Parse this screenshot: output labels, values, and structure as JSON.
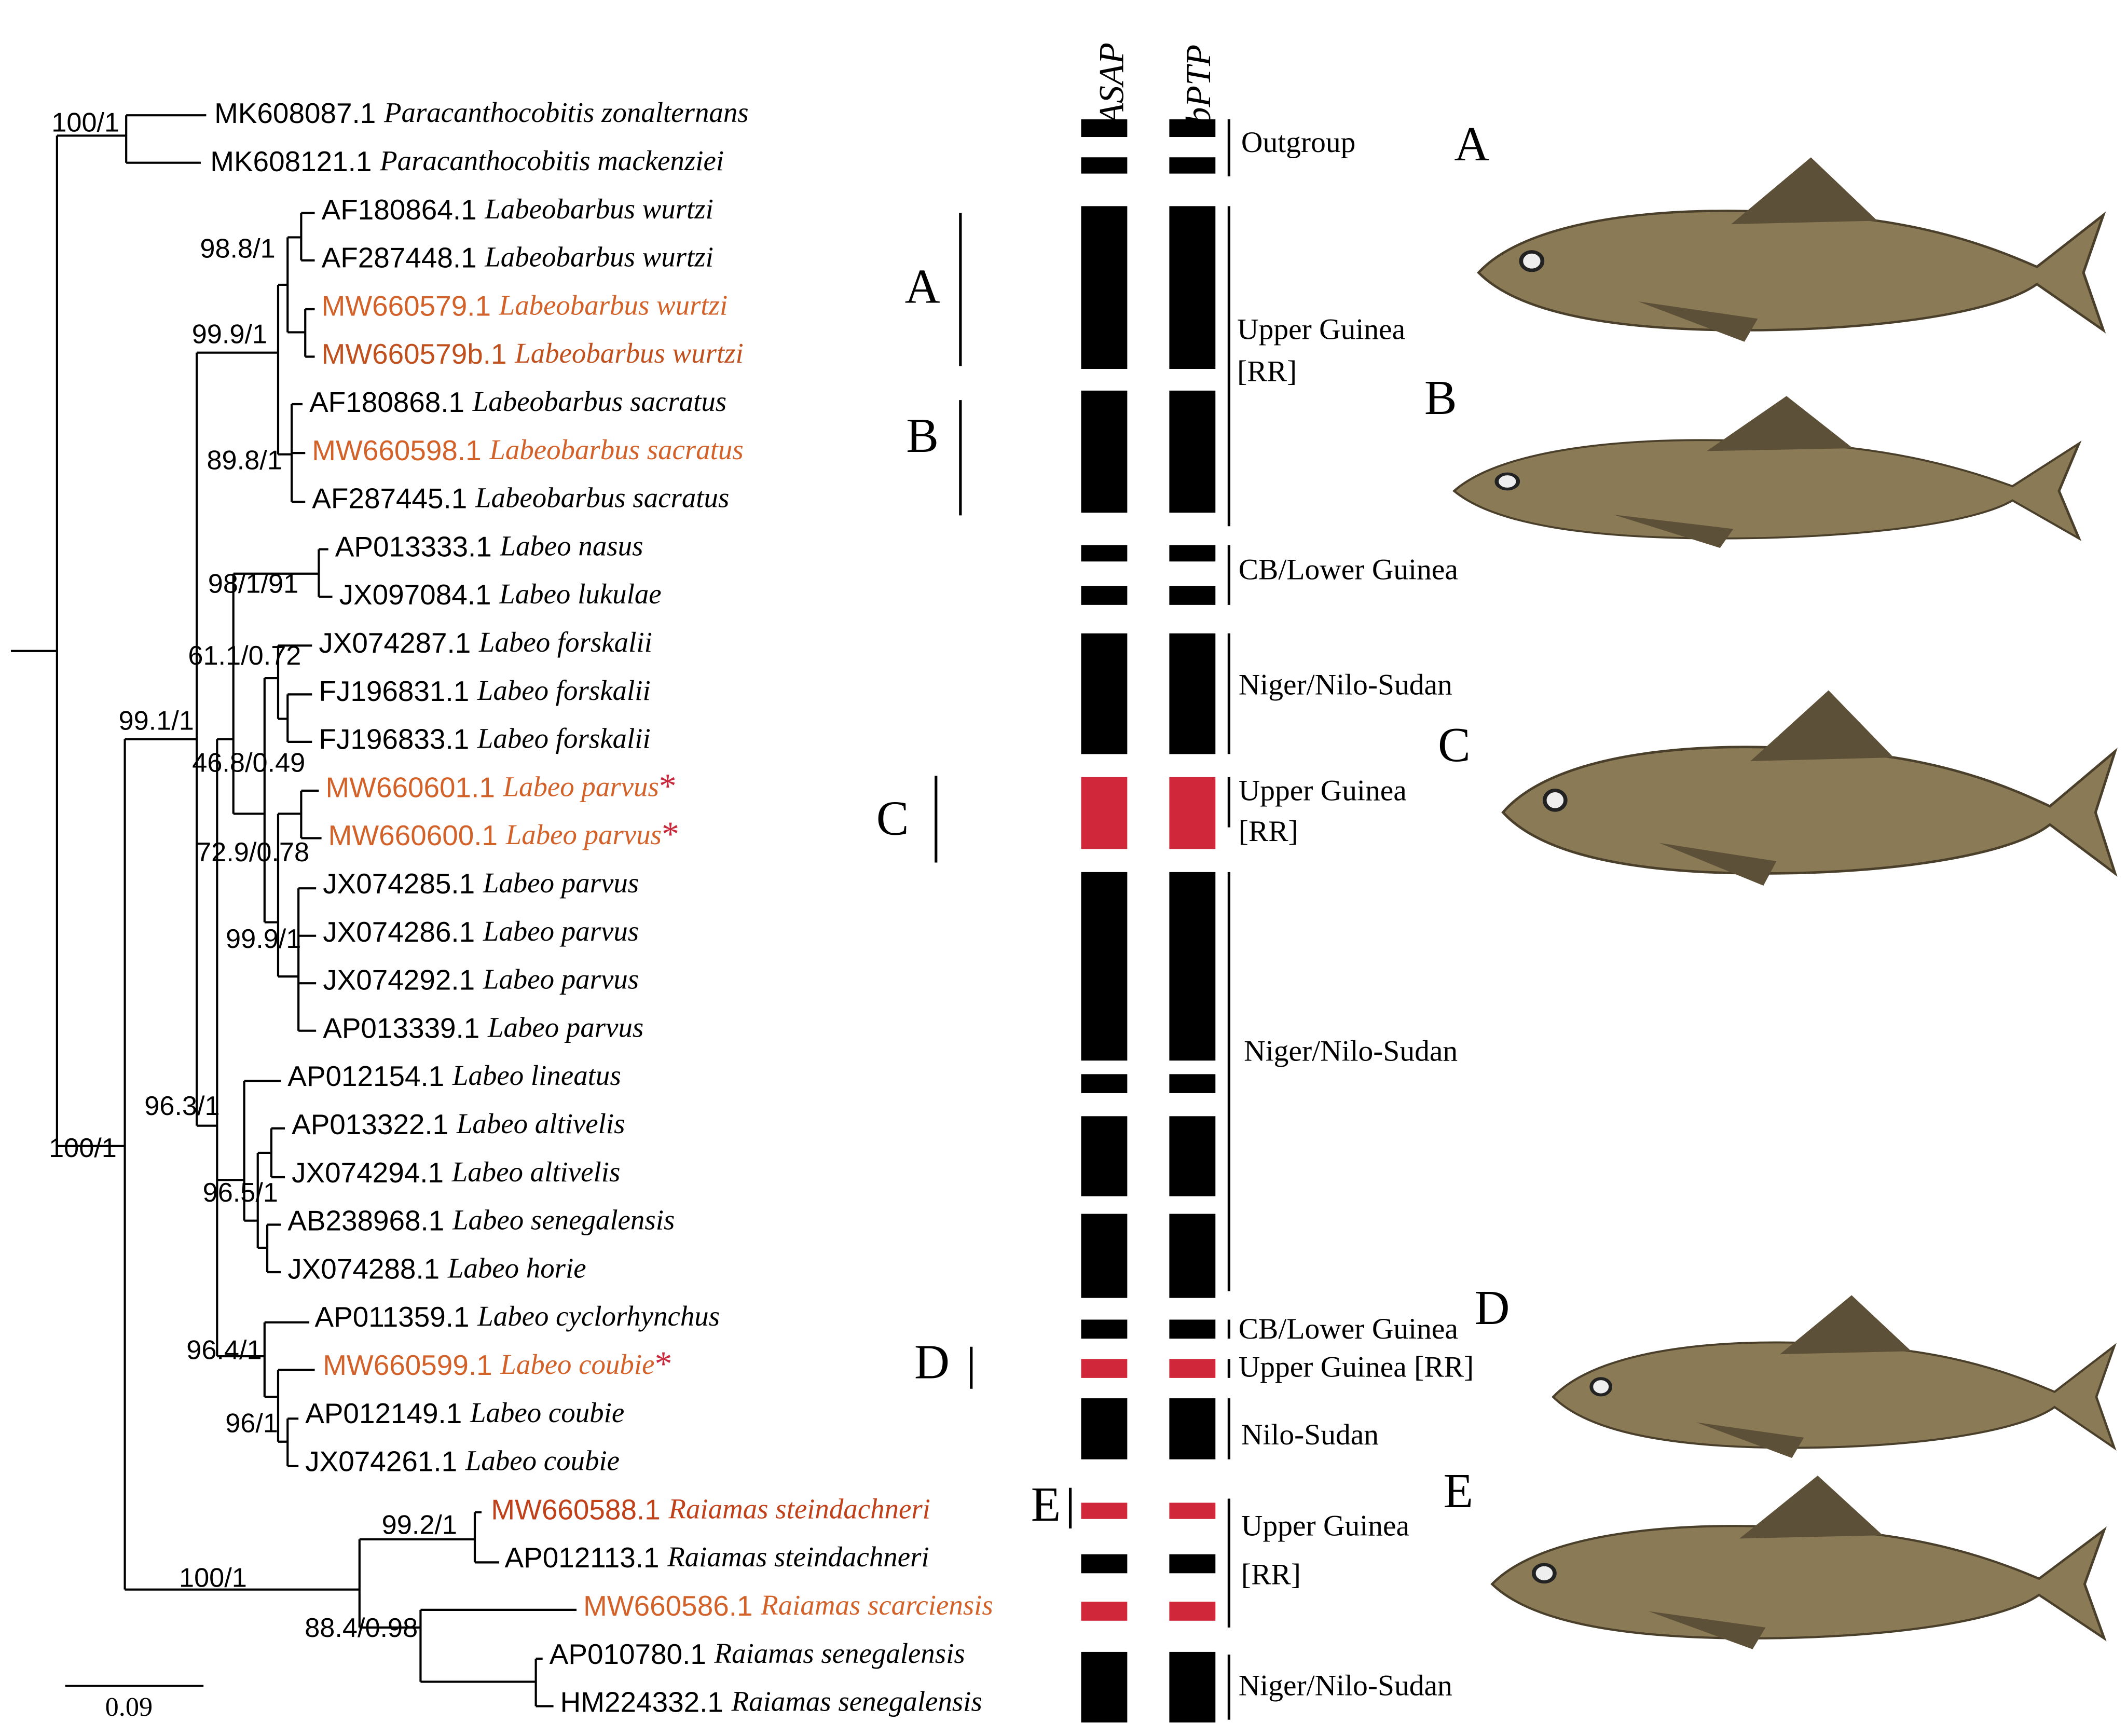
{
  "taxa": [
    {
      "accession": "MK608087.1",
      "species": "Paracanthocobitis zonalternans",
      "color": "#000000"
    },
    {
      "accession": "MK608121.1",
      "species": "Paracanthocobitis mackenziei",
      "color": "#000000"
    },
    {
      "accession": "AF180864.1",
      "species": "Labeobarbus wurtzi",
      "color": "#000000"
    },
    {
      "accession": "AF287448.1",
      "species": "Labeobarbus wurtzi",
      "color": "#000000"
    },
    {
      "accession": "MW660579.1",
      "species": "Labeobarbus wurtzi",
      "color": "#d2622a"
    },
    {
      "accession": "MW660579b.1",
      "species": "Labeobarbus wurtzi",
      "color": "#c0501e"
    },
    {
      "accession": "AF180868.1",
      "species": "Labeobarbus sacratus",
      "color": "#000000"
    },
    {
      "accession": "MW660598.1",
      "species": "Labeobarbus sacratus",
      "color": "#d2622a"
    },
    {
      "accession": "AF287445.1",
      "species": "Labeobarbus sacratus",
      "color": "#000000"
    },
    {
      "accession": "AP013333.1",
      "species": "Labeo nasus",
      "color": "#000000"
    },
    {
      "accession": "JX097084.1",
      "species": "Labeo lukulae",
      "color": "#000000"
    },
    {
      "accession": "JX074287.1",
      "species": "Labeo forskalii",
      "color": "#000000"
    },
    {
      "accession": "FJ196831.1",
      "species": "Labeo forskalii",
      "color": "#000000"
    },
    {
      "accession": "FJ196833.1",
      "species": "Labeo forskalii",
      "color": "#000000"
    },
    {
      "accession": "MW660601.1",
      "species": "Labeo parvus",
      "color": "#d2622a",
      "marker": "*"
    },
    {
      "accession": "MW660600.1",
      "species": "Labeo parvus",
      "color": "#d2622a",
      "marker": "*"
    },
    {
      "accession": "JX074285.1",
      "species": "Labeo parvus",
      "color": "#000000"
    },
    {
      "accession": "JX074286.1",
      "species": "Labeo parvus",
      "color": "#000000"
    },
    {
      "accession": "JX074292.1",
      "species": "Labeo parvus",
      "color": "#000000"
    },
    {
      "accession": "AP013339.1",
      "species": "Labeo parvus",
      "color": "#000000"
    },
    {
      "accession": "AP012154.1",
      "species": "Labeo lineatus",
      "color": "#000000"
    },
    {
      "accession": "AP013322.1",
      "species": "Labeo altivelis",
      "color": "#000000"
    },
    {
      "accession": "JX074294.1",
      "species": "Labeo altivelis",
      "color": "#000000"
    },
    {
      "accession": "AB238968.1",
      "species": "Labeo senegalensis",
      "color": "#000000"
    },
    {
      "accession": "JX074288.1",
      "species": "Labeo horie",
      "color": "#000000"
    },
    {
      "accession": "AP011359.1",
      "species": "Labeo cyclorhynchus",
      "color": "#000000"
    },
    {
      "accession": "MW660599.1",
      "species": "Labeo coubie",
      "color": "#d2622a",
      "marker": "*"
    },
    {
      "accession": "AP012149.1",
      "species": "Labeo coubie",
      "color": "#000000"
    },
    {
      "accession": "JX074261.1",
      "species": "Labeo coubie",
      "color": "#000000"
    },
    {
      "accession": "MW660588.1",
      "species": "Raiamas steindachneri",
      "color": "#c0401a"
    },
    {
      "accession": "AP012113.1",
      "species": "Raiamas steindachneri",
      "color": "#000000"
    },
    {
      "accession": "MW660586.1",
      "species": "Raiamas scarciensis",
      "color": "#d2622a"
    },
    {
      "accession": "AP010780.1",
      "species": "Raiamas senegalensis",
      "color": "#000000"
    },
    {
      "accession": "HM224332.1",
      "species": "Raiamas senegalensis",
      "color": "#000000"
    }
  ],
  "support_values": [
    "100/1",
    "98.8/1",
    "99.9/1",
    "89.8/1",
    "98/1/91",
    "61.1/0.72",
    "99.1/1",
    "46.8/0.49",
    "72.9/0.78",
    "99.9/1",
    "96.3/1",
    "100/1",
    "96.5/1",
    "96.4/1",
    "96/1",
    "99.2/1",
    "100/1",
    "88.4/0.98"
  ],
  "scale_bar": "0.09",
  "delimitation_methods": [
    "ASAP",
    "bPTP"
  ],
  "regions": [
    {
      "lines": [
        "Outgroup"
      ]
    },
    {
      "lines": [
        "Upper Guinea",
        "[RR]"
      ]
    },
    {
      "lines": [
        "CB/Lower Guinea"
      ]
    },
    {
      "lines": [
        "Niger/Nilo-Sudan"
      ]
    },
    {
      "lines": [
        "Upper Guinea",
        "[RR]"
      ]
    },
    {
      "lines": [
        "Niger/Nilo-Sudan"
      ]
    },
    {
      "lines": [
        "CB/Lower Guinea"
      ]
    },
    {
      "lines": [
        "Upper Guinea [RR]"
      ]
    },
    {
      "lines": [
        "Nilo-Sudan"
      ]
    },
    {
      "lines": [
        "Upper Guinea",
        "[RR]"
      ]
    },
    {
      "lines": [
        "Niger/Nilo-Sudan"
      ]
    }
  ],
  "clade_labels": [
    "A",
    "B",
    "C",
    "D",
    "E"
  ],
  "photo_labels": [
    "A",
    "B",
    "C",
    "D",
    "E"
  ]
}
